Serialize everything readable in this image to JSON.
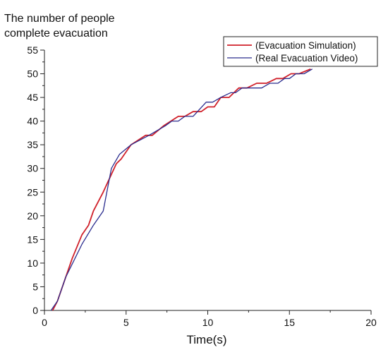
{
  "chart_data": {
    "type": "line",
    "title": "",
    "xlabel": "Time(s)",
    "ylabel_lines": [
      "The number of people",
      "complete evacuation"
    ],
    "xlim": [
      0,
      20
    ],
    "ylim": [
      0,
      55
    ],
    "xticks": [
      0,
      5,
      10,
      15,
      20
    ],
    "yticks": [
      0,
      5,
      10,
      15,
      20,
      25,
      30,
      35,
      40,
      45,
      50,
      55
    ],
    "grid": false,
    "legend_position": "top-right",
    "series": [
      {
        "name": "(Evacuation Simulation)",
        "color": "#d0202a",
        "points": [
          [
            0.5,
            0
          ],
          [
            0.8,
            2
          ],
          [
            1.2,
            6
          ],
          [
            1.7,
            11
          ],
          [
            2.3,
            16
          ],
          [
            2.7,
            18
          ],
          [
            3.0,
            21
          ],
          [
            3.6,
            25
          ],
          [
            4.0,
            28
          ],
          [
            4.4,
            31
          ],
          [
            4.7,
            32
          ],
          [
            5.3,
            35
          ],
          [
            6.2,
            37
          ],
          [
            6.6,
            37
          ],
          [
            7.3,
            39
          ],
          [
            8.2,
            41
          ],
          [
            8.6,
            41
          ],
          [
            9.1,
            42
          ],
          [
            9.6,
            42
          ],
          [
            10.0,
            43
          ],
          [
            10.4,
            43
          ],
          [
            10.8,
            45
          ],
          [
            11.3,
            45
          ],
          [
            11.9,
            47
          ],
          [
            12.4,
            47
          ],
          [
            13.0,
            48
          ],
          [
            13.6,
            48
          ],
          [
            14.2,
            49
          ],
          [
            14.6,
            49
          ],
          [
            15.1,
            50
          ],
          [
            15.6,
            50
          ],
          [
            16.3,
            51
          ]
        ]
      },
      {
        "name": "(Real Evacuation Video)",
        "color": "#2a2c8e",
        "points": [
          [
            0.4,
            0
          ],
          [
            0.8,
            2
          ],
          [
            1.3,
            7
          ],
          [
            2.3,
            14
          ],
          [
            3.0,
            18
          ],
          [
            3.6,
            21
          ],
          [
            4.1,
            30
          ],
          [
            4.6,
            33
          ],
          [
            5.3,
            35
          ],
          [
            6.4,
            37
          ],
          [
            7.4,
            39
          ],
          [
            7.8,
            40
          ],
          [
            8.2,
            40
          ],
          [
            8.6,
            41
          ],
          [
            9.1,
            41
          ],
          [
            9.9,
            44
          ],
          [
            10.3,
            44
          ],
          [
            10.8,
            45
          ],
          [
            11.4,
            46
          ],
          [
            11.7,
            46
          ],
          [
            12.1,
            47
          ],
          [
            13.3,
            47
          ],
          [
            13.8,
            48
          ],
          [
            14.3,
            48
          ],
          [
            14.7,
            49
          ],
          [
            15.0,
            49
          ],
          [
            15.4,
            50
          ],
          [
            15.9,
            50
          ],
          [
            16.4,
            51
          ]
        ]
      }
    ]
  }
}
